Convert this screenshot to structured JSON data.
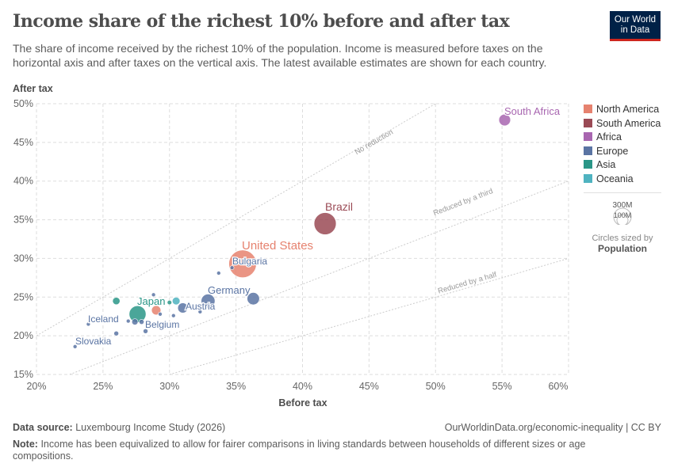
{
  "title": "Income share of the richest 10% before and after tax",
  "subtitle": "The share of income received by the richest 10% of the population. Income is measured before taxes on the horizontal axis and after taxes on the vertical axis. The latest available estimates are shown for each country.",
  "logo": "Our World in Data",
  "footer": {
    "source_label": "Data source:",
    "source": "Luxembourg Income Study (2026)",
    "url": "OurWorldinData.org/economic-inequality | CC BY",
    "note_label": "Note:",
    "note": "Income has been equivalized to allow for fairer comparisons in living standards between households of different sizes or age compositions."
  },
  "chart_data": {
    "type": "scatter",
    "xlabel": "Before tax",
    "ylabel": "After tax",
    "xlim": [
      20,
      60
    ],
    "ylim": [
      15,
      50
    ],
    "xticks": [
      "20%",
      "25%",
      "30%",
      "35%",
      "40%",
      "45%",
      "50%",
      "55%",
      "60%"
    ],
    "yticks": [
      "15%",
      "20%",
      "25%",
      "30%",
      "35%",
      "40%",
      "45%",
      "50%"
    ],
    "grid": true,
    "reference_lines": [
      {
        "label": "No reduction",
        "slope": 1
      },
      {
        "label": "Reduced by a third",
        "slope": 0.6667
      },
      {
        "label": "Reduced by a half",
        "slope": 0.5
      }
    ],
    "legend": [
      {
        "name": "North America",
        "color": "#e6826f"
      },
      {
        "name": "South America",
        "color": "#9a4a55"
      },
      {
        "name": "Africa",
        "color": "#a866b0"
      },
      {
        "name": "Europe",
        "color": "#5a74a3"
      },
      {
        "name": "Asia",
        "color": "#2a9687"
      },
      {
        "name": "Oceania",
        "color": "#4fb3c0"
      }
    ],
    "legend_position": "right",
    "size_legend": {
      "values": [
        "300M",
        "100M"
      ],
      "caption": "Circles sized by",
      "variable": "Population"
    },
    "points": [
      {
        "label": "United States",
        "region": "North America",
        "x": 35.5,
        "y": 29.3,
        "pop": 335
      },
      {
        "label": "Brazil",
        "region": "South America",
        "x": 41.7,
        "y": 34.5,
        "pop": 215
      },
      {
        "label": "Japan",
        "region": "Asia",
        "x": 27.6,
        "y": 22.8,
        "pop": 125
      },
      {
        "label": "Germany",
        "region": "Europe",
        "x": 32.9,
        "y": 24.5,
        "pop": 84
      },
      {
        "label": "South Africa",
        "region": "Africa",
        "x": 55.2,
        "y": 47.9,
        "pop": 60
      },
      {
        "label": "",
        "region": "Europe",
        "x": 36.3,
        "y": 24.8,
        "pop": 67
      },
      {
        "label": "Austria",
        "region": "Europe",
        "x": 31.0,
        "y": 23.6,
        "pop": 45
      },
      {
        "label": "",
        "region": "Asia",
        "x": 26.0,
        "y": 24.5,
        "pop": 24
      },
      {
        "label": "",
        "region": "Oceania",
        "x": 30.5,
        "y": 24.5,
        "pop": 26
      },
      {
        "label": "",
        "region": "North America",
        "x": 29.0,
        "y": 23.3,
        "pop": 38
      },
      {
        "label": "",
        "region": "Europe",
        "x": 27.4,
        "y": 21.8,
        "pop": 17
      },
      {
        "label": "",
        "region": "Europe",
        "x": 28.2,
        "y": 20.6,
        "pop": 10
      },
      {
        "label": "",
        "region": "Europe",
        "x": 26.0,
        "y": 20.3,
        "pop": 10
      },
      {
        "label": "",
        "region": "Europe",
        "x": 28.8,
        "y": 25.3,
        "pop": 6
      },
      {
        "label": "Bulgaria",
        "region": "Europe",
        "x": 34.7,
        "y": 28.8,
        "pop": 6
      },
      {
        "label": "",
        "region": "Europe",
        "x": 33.7,
        "y": 28.1,
        "pop": 2
      },
      {
        "label": "",
        "region": "Asia",
        "x": 30.0,
        "y": 24.3,
        "pop": 9
      },
      {
        "label": "Belgium",
        "region": "Europe",
        "x": 27.9,
        "y": 21.8,
        "pop": 11
      },
      {
        "label": "",
        "region": "Europe",
        "x": 26.9,
        "y": 21.9,
        "pop": 5
      },
      {
        "label": "",
        "region": "Europe",
        "x": 30.3,
        "y": 22.6,
        "pop": 5
      },
      {
        "label": "",
        "region": "Europe",
        "x": 32.3,
        "y": 23.1,
        "pop": 2
      },
      {
        "label": "",
        "region": "Europe",
        "x": 29.3,
        "y": 22.8,
        "pop": 2
      },
      {
        "label": "Iceland",
        "region": "Europe",
        "x": 23.9,
        "y": 21.5,
        "pop": 0.4
      },
      {
        "label": "Slovakia",
        "region": "Europe",
        "x": 22.9,
        "y": 18.6,
        "pop": 5
      }
    ]
  }
}
